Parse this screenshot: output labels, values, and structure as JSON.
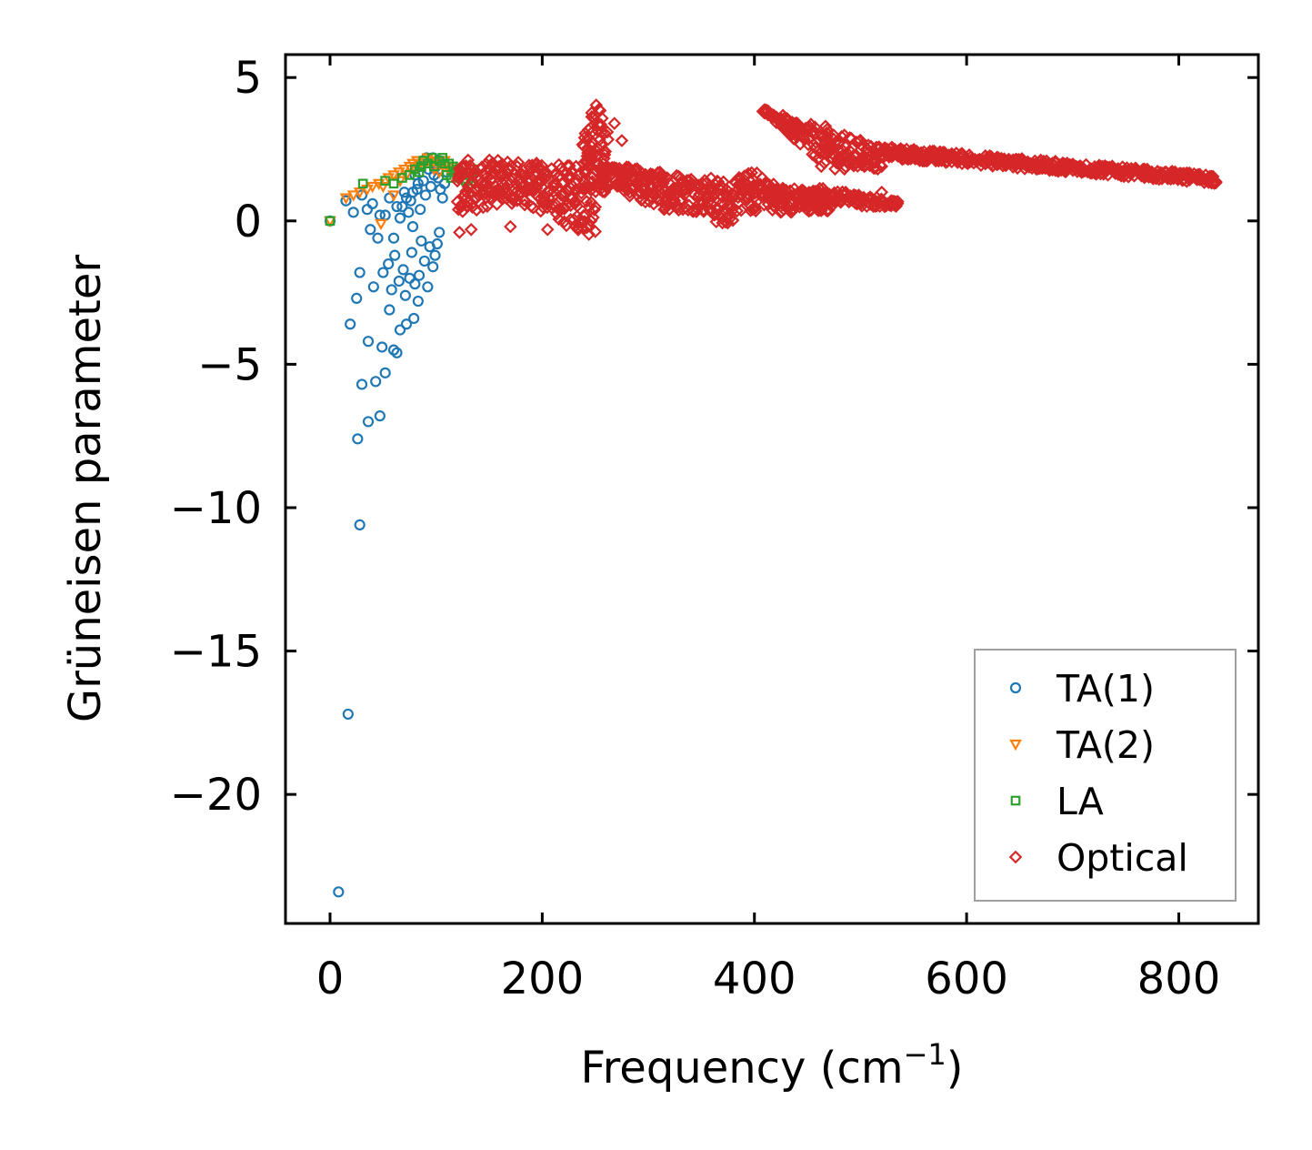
{
  "chart_data": {
    "type": "scatter",
    "title": "",
    "xlabel": "Frequency (cm",
    "xlabel_sup": "−1",
    "xlabel_close": ")",
    "ylabel": "Grüneisen parameter",
    "xlim": [
      -42,
      875
    ],
    "ylim": [
      -24.5,
      5.8
    ],
    "xticks": [
      0,
      200,
      400,
      600,
      800
    ],
    "xtick_labels": [
      "0",
      "200",
      "400",
      "600",
      "800"
    ],
    "yticks": [
      5,
      0,
      -5,
      -10,
      -15,
      -20
    ],
    "ytick_labels": [
      "5",
      "0",
      "−5",
      "−10",
      "−15",
      "−20"
    ],
    "grid": false,
    "legend_position": "lower-right",
    "colors": {
      "TA(1)": "#1f77b4",
      "TA(2)": "#ff7f0e",
      "LA": "#2ca02c",
      "Optical": "#d62728"
    },
    "series": [
      {
        "name": "TA(1)",
        "marker": "circle",
        "points": [
          [
            0,
            0
          ],
          [
            8,
            -23.4
          ],
          [
            17,
            -17.2
          ],
          [
            28,
            -10.6
          ],
          [
            19,
            -3.6
          ],
          [
            26,
            -7.6
          ],
          [
            30,
            -5.7
          ],
          [
            36,
            -7.0
          ],
          [
            43,
            -5.6
          ],
          [
            47,
            -6.8
          ],
          [
            52,
            -5.3
          ],
          [
            28,
            -1.8
          ],
          [
            25,
            -2.7
          ],
          [
            36,
            -4.2
          ],
          [
            41,
            -2.3
          ],
          [
            49,
            -4.4
          ],
          [
            60,
            -4.5
          ],
          [
            63,
            -4.6
          ],
          [
            56,
            -3.1
          ],
          [
            66,
            -3.8
          ],
          [
            72,
            -3.6
          ],
          [
            79,
            -3.4
          ],
          [
            83,
            -2.8
          ],
          [
            45,
            -0.6
          ],
          [
            50,
            -1.8
          ],
          [
            55,
            -1.5
          ],
          [
            58,
            -2.4
          ],
          [
            61,
            -1.2
          ],
          [
            65,
            -2.1
          ],
          [
            69,
            -1.7
          ],
          [
            71,
            -2.6
          ],
          [
            75,
            -2.0
          ],
          [
            77,
            -1.1
          ],
          [
            80,
            -2.2
          ],
          [
            84,
            -1.9
          ],
          [
            86,
            -0.7
          ],
          [
            89,
            -1.4
          ],
          [
            92,
            -2.3
          ],
          [
            94,
            -0.9
          ],
          [
            97,
            -1.6
          ],
          [
            99,
            -1.2
          ],
          [
            101,
            -0.8
          ],
          [
            103,
            -0.4
          ],
          [
            35,
            0.4
          ],
          [
            38,
            -0.3
          ],
          [
            52,
            0.2
          ],
          [
            60,
            -0.6
          ],
          [
            66,
            0.1
          ],
          [
            74,
            0.3
          ],
          [
            78,
            -0.2
          ],
          [
            15,
            0.7
          ],
          [
            22,
            0.3
          ],
          [
            30,
            0.9
          ],
          [
            40,
            0.6
          ],
          [
            47,
            0.2
          ],
          [
            56,
            0.8
          ],
          [
            63,
            0.5
          ],
          [
            70,
            1.0
          ],
          [
            76,
            0.7
          ],
          [
            82,
            1.1
          ],
          [
            85,
            0.4
          ],
          [
            88,
            1.4
          ],
          [
            90,
            0.9
          ],
          [
            93,
            1.8
          ],
          [
            95,
            1.2
          ],
          [
            98,
            1.6
          ],
          [
            100,
            2.0
          ],
          [
            102,
            1.5
          ],
          [
            104,
            1.1
          ],
          [
            106,
            0.8
          ],
          [
            108,
            1.3
          ],
          [
            110,
            1.7
          ],
          [
            85,
            1.9
          ],
          [
            88,
            2.1
          ],
          [
            91,
            2.2
          ],
          [
            94,
            2.1
          ],
          [
            97,
            2.2
          ],
          [
            100,
            1.9
          ],
          [
            103,
            2.1
          ],
          [
            80,
            1.6
          ],
          [
            83,
            1.3
          ],
          [
            78,
            1.0
          ],
          [
            72,
            0.8
          ],
          [
            68,
            0.5
          ]
        ]
      },
      {
        "name": "TA(2)",
        "marker": "triangle-down",
        "points": [
          [
            0,
            0
          ],
          [
            15,
            0.8
          ],
          [
            22,
            0.9
          ],
          [
            28,
            1.0
          ],
          [
            35,
            1.1
          ],
          [
            40,
            1.2
          ],
          [
            46,
            1.3
          ],
          [
            50,
            1.2
          ],
          [
            55,
            1.5
          ],
          [
            60,
            1.6
          ],
          [
            65,
            1.7
          ],
          [
            70,
            1.8
          ],
          [
            75,
            1.9
          ],
          [
            80,
            1.8
          ],
          [
            85,
            2.0
          ],
          [
            90,
            2.1
          ],
          [
            95,
            2.0
          ],
          [
            100,
            2.1
          ],
          [
            105,
            2.0
          ],
          [
            110,
            1.9
          ],
          [
            48,
            -0.1
          ],
          [
            60,
            0.9
          ],
          [
            66,
            1.4
          ],
          [
            72,
            1.6
          ],
          [
            78,
            2.0
          ],
          [
            82,
            2.1
          ],
          [
            88,
            1.9
          ],
          [
            92,
            2.2
          ],
          [
            98,
            1.8
          ],
          [
            103,
            1.7
          ],
          [
            108,
            2.1
          ],
          [
            112,
            1.8
          ],
          [
            115,
            1.9
          ]
        ]
      },
      {
        "name": "LA",
        "marker": "square",
        "points": [
          [
            0,
            0
          ],
          [
            31,
            1.3
          ],
          [
            52,
            1.4
          ],
          [
            60,
            1.3
          ],
          [
            68,
            1.5
          ],
          [
            75,
            1.6
          ],
          [
            80,
            1.8
          ],
          [
            86,
            1.9
          ],
          [
            92,
            2.0
          ],
          [
            98,
            1.9
          ],
          [
            103,
            2.1
          ],
          [
            108,
            2.0
          ],
          [
            112,
            2.0
          ],
          [
            116,
            1.9
          ],
          [
            120,
            1.8
          ],
          [
            124,
            1.6
          ],
          [
            128,
            1.4
          ],
          [
            130,
            1.2
          ],
          [
            133,
            1.5
          ],
          [
            136,
            1.8
          ],
          [
            118,
            1.7
          ],
          [
            114,
            1.5
          ],
          [
            110,
            1.6
          ],
          [
            106,
            2.2
          ],
          [
            96,
            2.2
          ],
          [
            88,
            2.1
          ],
          [
            84,
            1.7
          ]
        ]
      },
      {
        "name": "Optical",
        "marker": "diamond",
        "points": []
      }
    ]
  }
}
